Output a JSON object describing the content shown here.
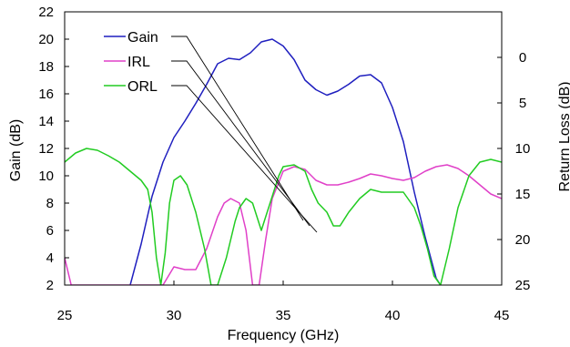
{
  "chart_data": {
    "type": "line",
    "title": "",
    "xlabel": "Frequency (GHz)",
    "ylabel": "Gain (dB)",
    "y2label": "Return Loss (dB)",
    "xlim": [
      25,
      45
    ],
    "ylim": [
      2,
      22
    ],
    "y2lim": [
      25,
      -5
    ],
    "xticks": [
      "25",
      "30",
      "35",
      "40",
      "45"
    ],
    "yticks": [
      "2",
      "4",
      "6",
      "8",
      "10",
      "12",
      "14",
      "16",
      "18",
      "20",
      "22"
    ],
    "y2ticks": [
      "0",
      "5",
      "10",
      "15",
      "20",
      "25"
    ],
    "grid": false,
    "legend_position": "top-left",
    "series": [
      {
        "name": "Gain",
        "axis": "left",
        "color": "#1f1fbf",
        "x": [
          28.0,
          28.5,
          29.0,
          29.5,
          30.0,
          30.5,
          31.0,
          31.5,
          32.0,
          32.5,
          33.0,
          33.5,
          34.0,
          34.5,
          35.0,
          35.5,
          36.0,
          36.5,
          37.0,
          37.5,
          38.0,
          38.5,
          39.0,
          39.5,
          40.0,
          40.5,
          41.0,
          41.5,
          42.0,
          42.2
        ],
        "y": [
          2.0,
          5.0,
          8.5,
          11.0,
          12.8,
          14.0,
          15.3,
          16.7,
          18.2,
          18.6,
          18.5,
          19.0,
          19.8,
          20.0,
          19.5,
          18.5,
          17.0,
          16.3,
          15.9,
          16.2,
          16.7,
          17.3,
          17.4,
          16.8,
          15.0,
          12.5,
          8.8,
          5.5,
          2.5,
          2.0
        ]
      },
      {
        "name": "IRL",
        "axis": "right",
        "color": "#e040c8",
        "x": [
          25.0,
          25.3,
          29.5,
          30.0,
          30.5,
          31.0,
          31.5,
          32.0,
          32.3,
          32.6,
          33.0,
          33.3,
          33.6,
          33.9,
          34.2,
          34.5,
          35.0,
          35.5,
          36.0,
          36.5,
          37.0,
          37.5,
          38.0,
          38.5,
          39.0,
          39.5,
          40.0,
          40.5,
          41.0,
          41.5,
          42.0,
          42.5,
          43.0,
          43.5,
          44.0,
          44.5,
          45.0
        ],
        "y": [
          22.0,
          25.0,
          25.0,
          23.0,
          23.3,
          23.3,
          21.0,
          17.5,
          16.0,
          15.5,
          16.0,
          19.0,
          25.0,
          25.0,
          20.0,
          15.5,
          12.5,
          12.0,
          12.3,
          13.5,
          14.0,
          14.0,
          13.7,
          13.3,
          12.8,
          13.0,
          13.3,
          13.5,
          13.2,
          12.5,
          12.0,
          11.8,
          12.2,
          13.0,
          14.0,
          15.0,
          15.5
        ]
      },
      {
        "name": "ORL",
        "axis": "right",
        "color": "#22cc22",
        "x": [
          25.0,
          25.5,
          26.0,
          26.5,
          27.0,
          27.5,
          28.0,
          28.5,
          28.8,
          29.0,
          29.2,
          29.4,
          29.6,
          29.8,
          30.0,
          30.3,
          30.6,
          31.0,
          31.4,
          31.7,
          32.0,
          32.4,
          32.8,
          33.0,
          33.3,
          33.6,
          34.0,
          34.4,
          34.8,
          35.0,
          35.5,
          36.0,
          36.3,
          36.6,
          37.0,
          37.3,
          37.6,
          38.0,
          38.5,
          39.0,
          39.5,
          40.0,
          40.5,
          41.0,
          41.3,
          41.6,
          41.9,
          42.2,
          42.6,
          43.0,
          43.5,
          44.0,
          44.5,
          45.0
        ],
        "y": [
          11.5,
          10.5,
          10.0,
          10.2,
          10.8,
          11.5,
          12.5,
          13.5,
          14.5,
          17.0,
          22.0,
          25.0,
          21.5,
          16.0,
          13.5,
          13.0,
          14.0,
          17.0,
          21.0,
          25.0,
          25.0,
          22.0,
          18.0,
          16.5,
          15.5,
          16.0,
          19.0,
          16.0,
          13.0,
          12.0,
          11.8,
          12.5,
          14.5,
          16.0,
          17.0,
          18.5,
          18.5,
          17.0,
          15.5,
          14.5,
          14.8,
          14.8,
          14.8,
          16.5,
          18.5,
          21.0,
          24.0,
          25.0,
          21.0,
          16.5,
          13.0,
          11.5,
          11.2,
          11.5
        ]
      }
    ],
    "legend": [
      "Gain",
      "IRL",
      "ORL"
    ]
  }
}
